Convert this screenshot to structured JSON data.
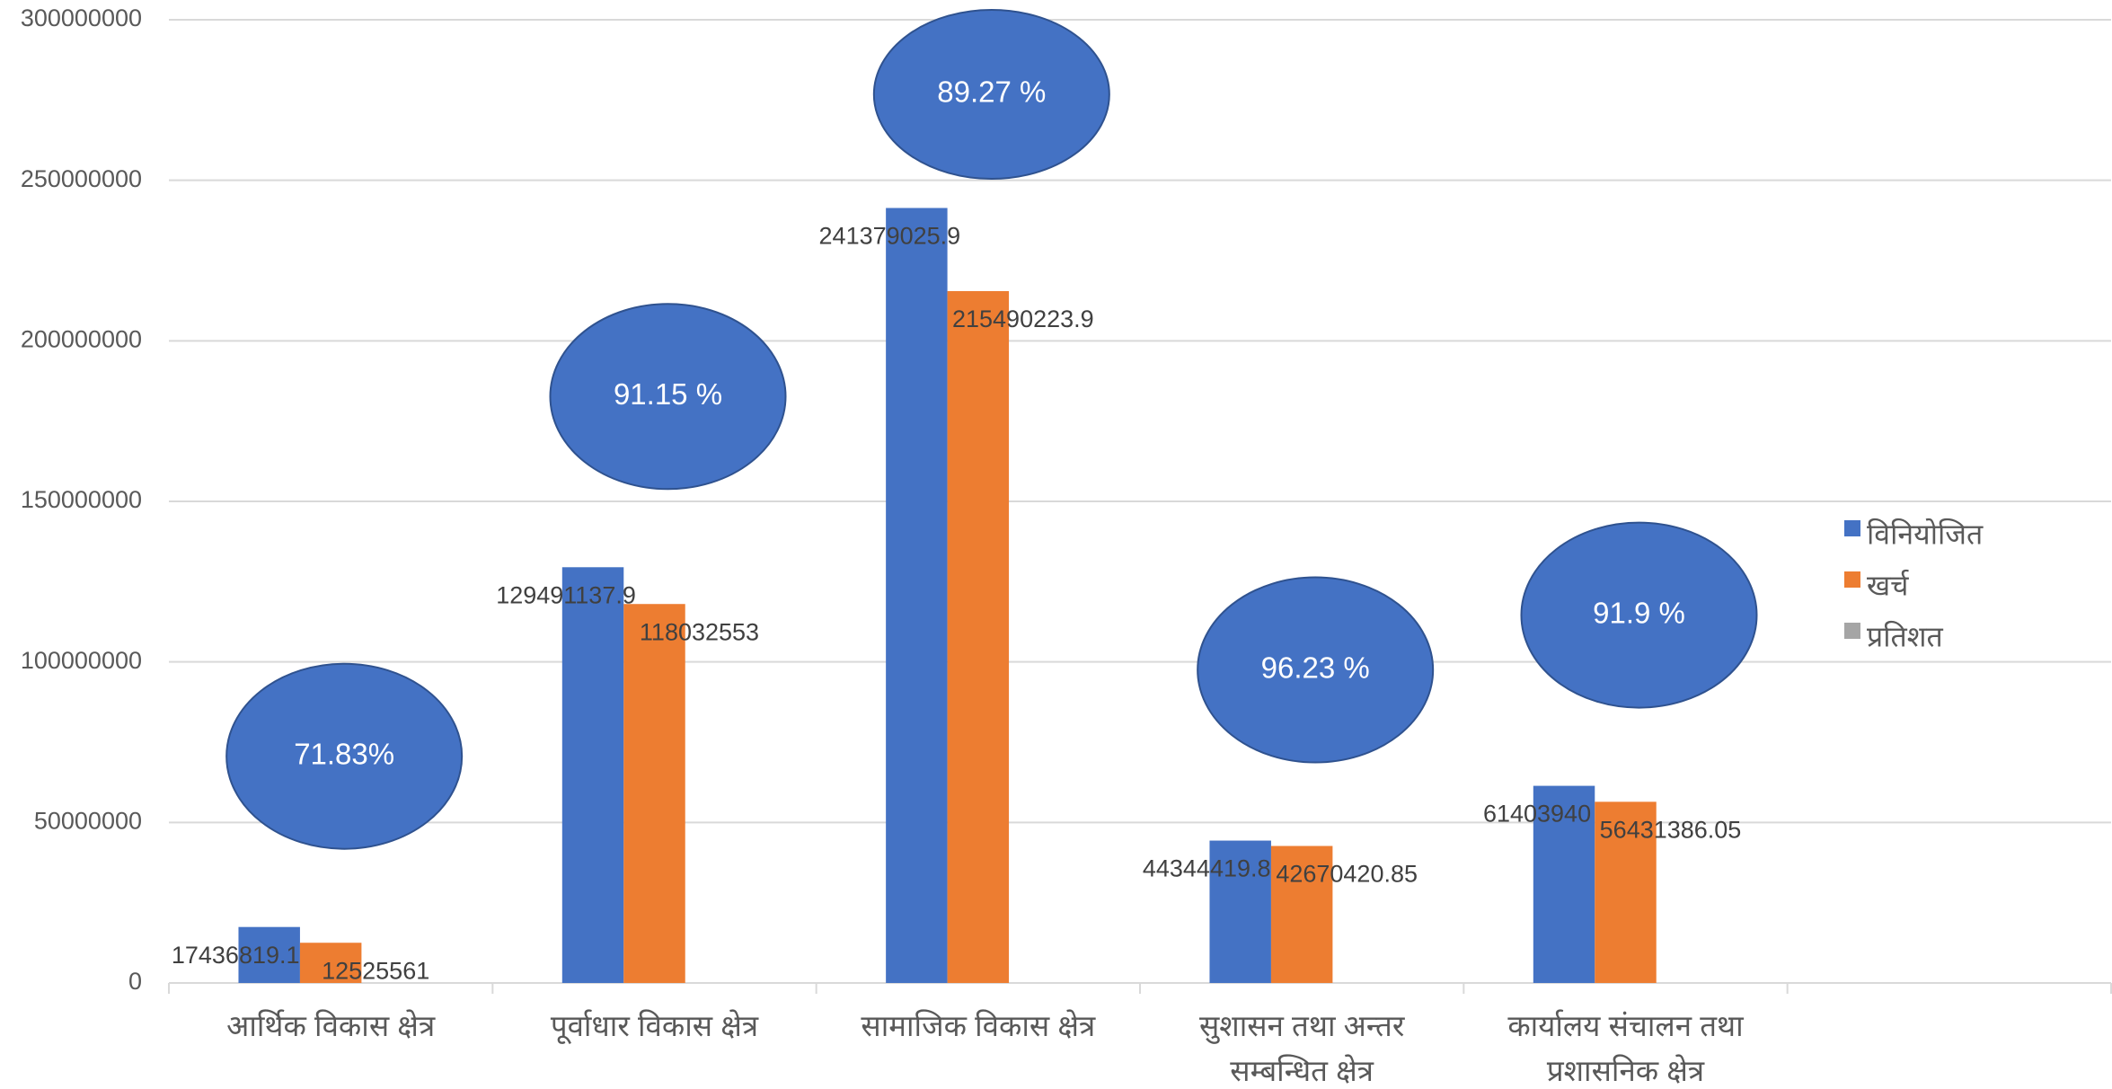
{
  "chart_data": {
    "type": "bar",
    "categories": [
      "आर्थिक विकास क्षेत्र",
      "पूर्वाधार विकास क्षेत्र",
      "सामाजिक विकास क्षेत्र",
      "सुशासन तथा अन्तर सम्बन्धित क्षेत्र",
      "कार्यालय संचालन तथा प्रशासनिक क्षेत्र",
      null
    ],
    "series": [
      {
        "name": "विनियोजित",
        "color": "#4472c4",
        "values": [
          17436819.12,
          129491137.9,
          241379025.9,
          44344419.85,
          61403940,
          null
        ]
      },
      {
        "name": "खर्च",
        "color": "#ed7d31",
        "values": [
          12525561,
          118032553,
          215490223.9,
          42670420.85,
          56431386.05,
          null
        ]
      },
      {
        "name": "प्रतिशत",
        "color": "#a5a5a5",
        "values": [
          71.83,
          91.15,
          89.27,
          96.23,
          91.9,
          null
        ],
        "value_labels": [
          "71.83%",
          "91.15 %",
          "89.27 %",
          "96.23 %",
          "91.9 %",
          null
        ]
      }
    ],
    "ylim": [
      0,
      300000000
    ],
    "yticks": [
      0,
      50000000,
      100000000,
      150000000,
      200000000,
      250000000,
      300000000
    ],
    "grid": true,
    "legend": "right"
  }
}
